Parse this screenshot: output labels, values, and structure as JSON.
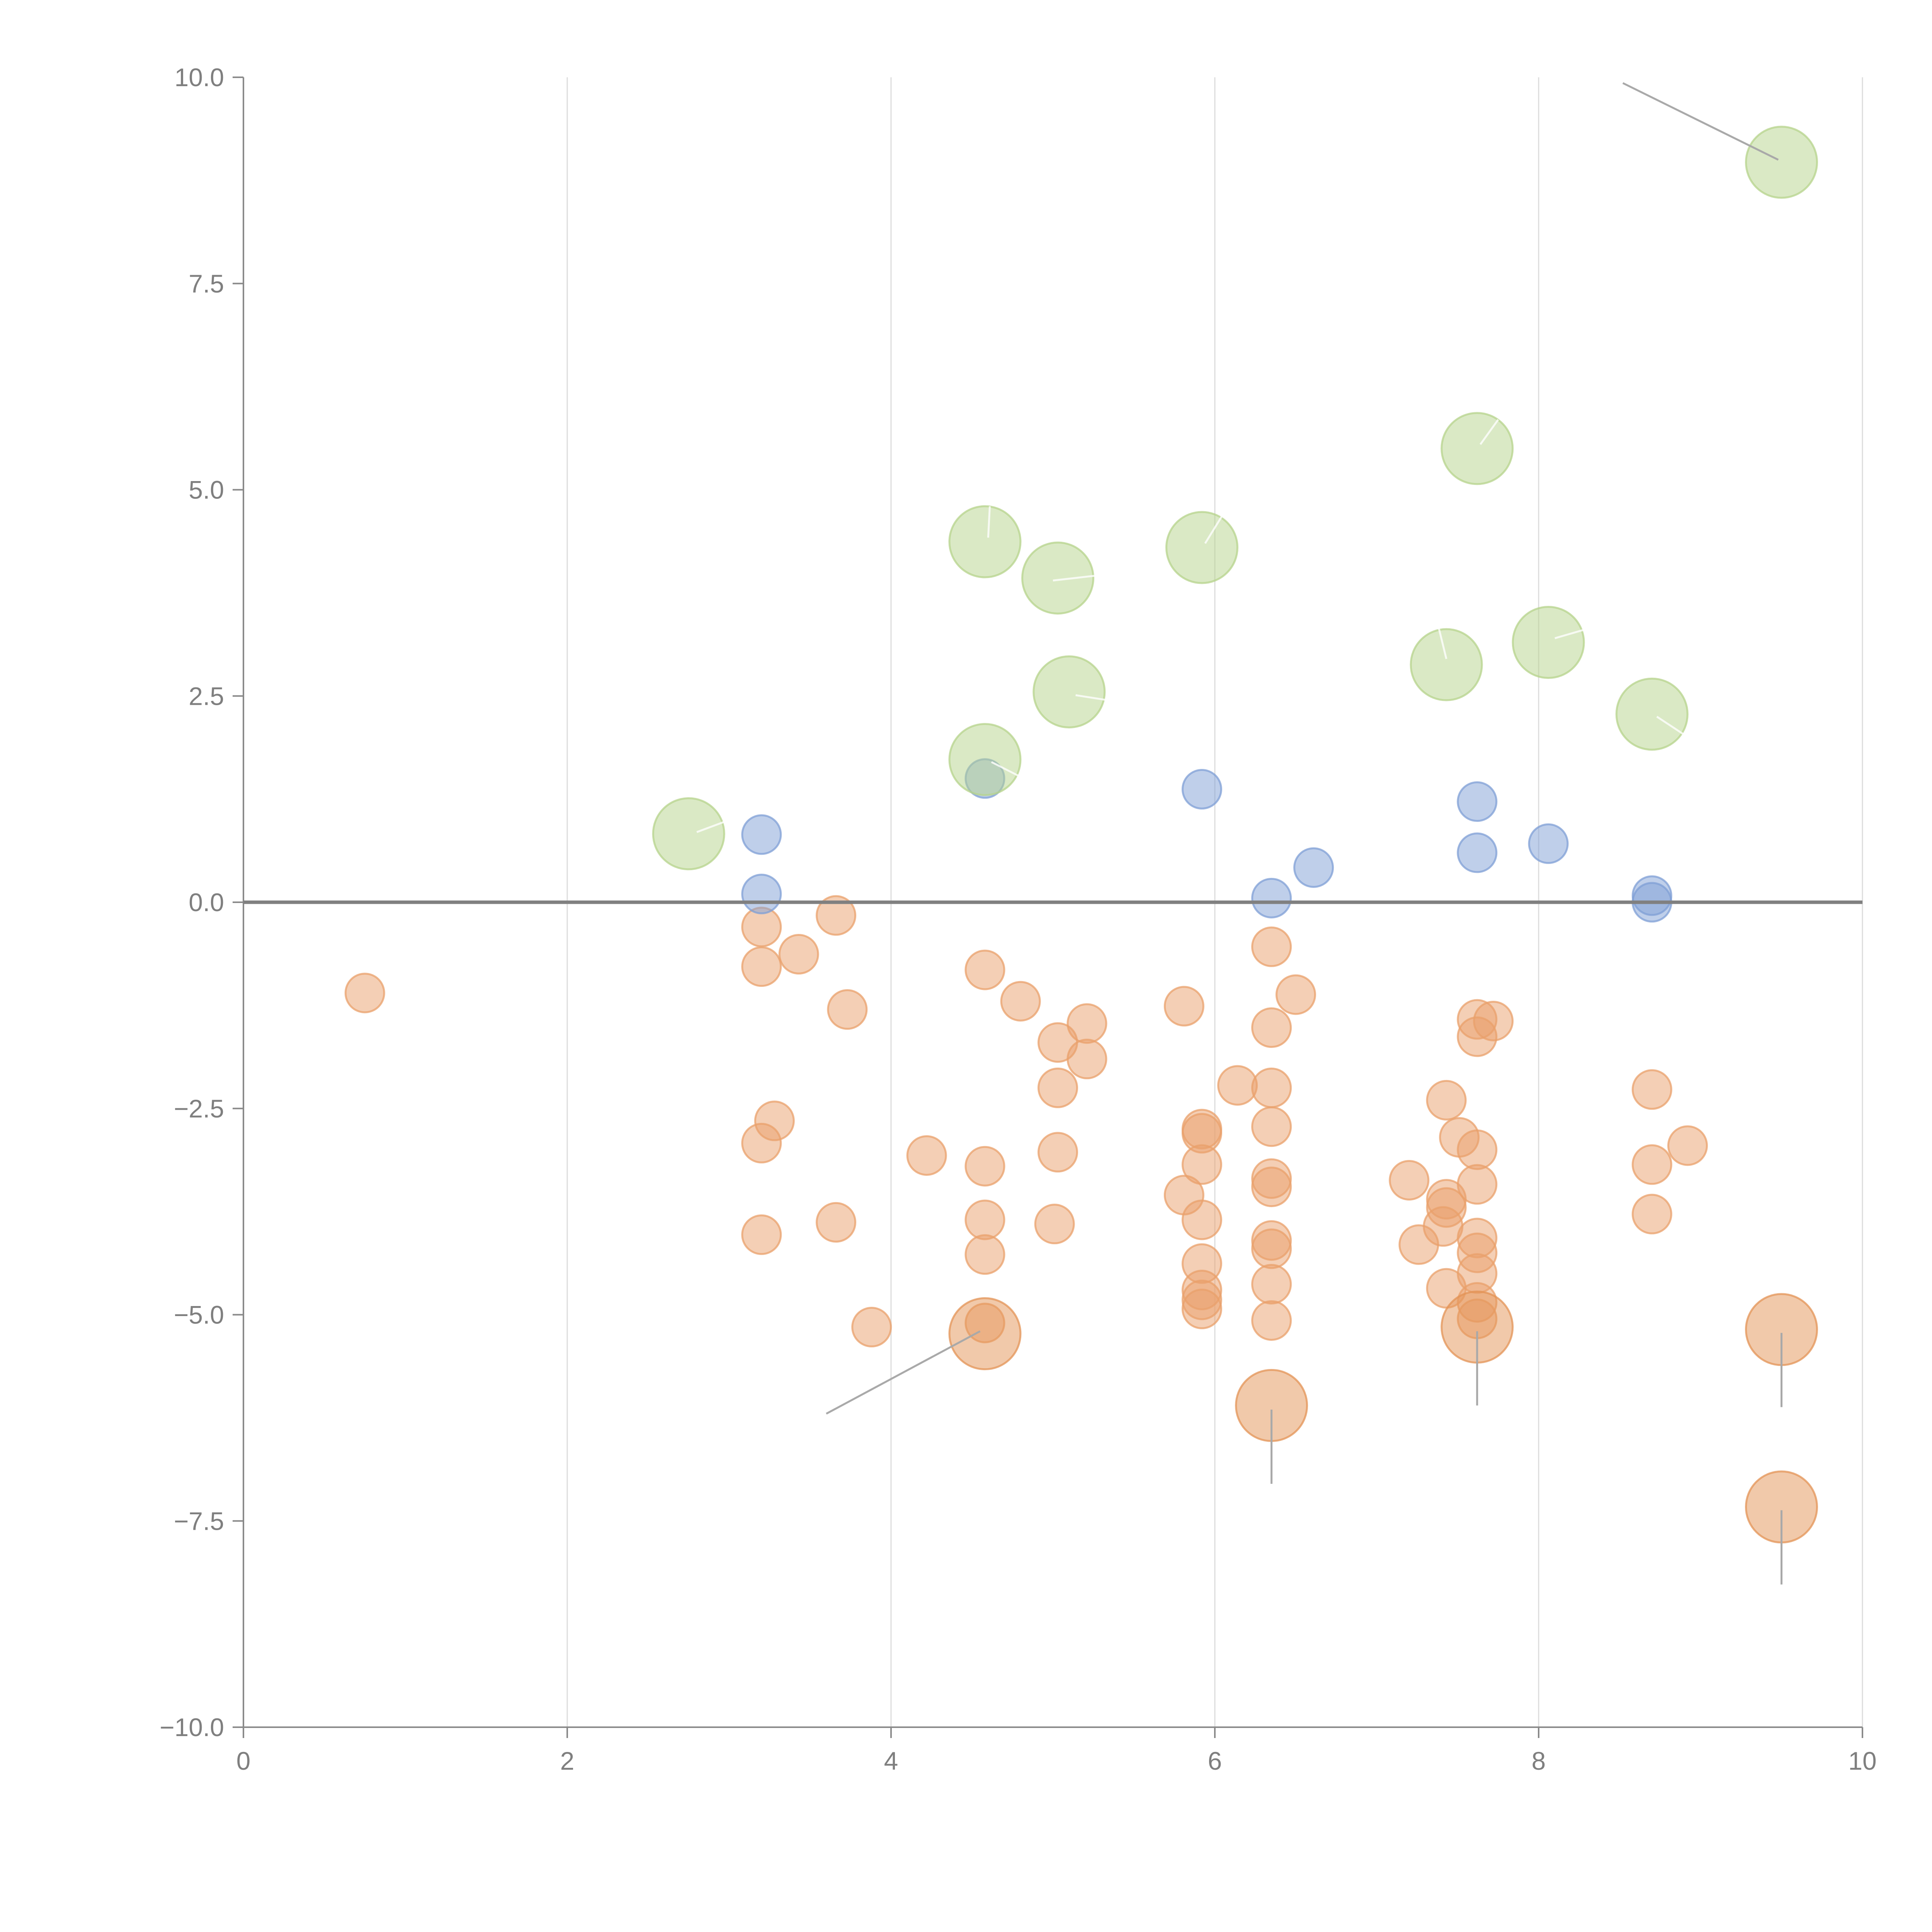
{
  "chart_data": {
    "type": "scatter",
    "title": "",
    "xlabel": "",
    "ylabel": "",
    "xlim": [
      0,
      10
    ],
    "ylim": [
      -10,
      10
    ],
    "x_ticks": [
      0,
      2,
      4,
      6,
      8,
      10
    ],
    "x_tick_labels": [
      "0",
      "2",
      "4",
      "6",
      "8",
      "10"
    ],
    "y_ticks": [
      10,
      7.5,
      5,
      2.5,
      0,
      -2.5,
      -5,
      -7.5,
      -10
    ],
    "y_tick_labels": [
      "10.0",
      "7.5",
      "5.0",
      "2.5",
      "0.0",
      "−2.5",
      "−5.0",
      "−7.5",
      "−10.0"
    ],
    "grid": "vertical lines at x ticks",
    "zero_line": 0,
    "colors": {
      "small_negative": "#e9a06b",
      "small_positive": "#7f9fd6",
      "large_positive": "#b5d38b",
      "large_negative": "#e39356",
      "leader": "#a9a9a9"
    },
    "series": [
      {
        "name": "small-negative",
        "marker": "small",
        "color_key": "small_negative",
        "points": [
          [
            0.75,
            -1.1
          ],
          [
            3.2,
            -0.3
          ],
          [
            3.2,
            -0.78
          ],
          [
            3.43,
            -0.63
          ],
          [
            3.66,
            -0.16
          ],
          [
            3.73,
            -1.3
          ],
          [
            3.28,
            -2.65
          ],
          [
            3.2,
            -2.92
          ],
          [
            3.2,
            -4.03
          ],
          [
            3.66,
            -3.88
          ],
          [
            3.88,
            -5.15
          ],
          [
            4.22,
            -3.07
          ],
          [
            4.58,
            -0.82
          ],
          [
            4.8,
            -1.2
          ],
          [
            5.03,
            -1.7
          ],
          [
            5.21,
            -1.47
          ],
          [
            5.21,
            -1.9
          ],
          [
            5.03,
            -2.25
          ],
          [
            5.03,
            -3.03
          ],
          [
            5.01,
            -3.9
          ],
          [
            4.58,
            -3.2
          ],
          [
            4.58,
            -3.85
          ],
          [
            4.58,
            -4.27
          ],
          [
            4.58,
            -5.1
          ],
          [
            5.81,
            -1.26
          ],
          [
            6.14,
            -2.22
          ],
          [
            5.92,
            -2.75
          ],
          [
            5.92,
            -2.8
          ],
          [
            5.92,
            -3.18
          ],
          [
            5.81,
            -3.55
          ],
          [
            5.92,
            -3.85
          ],
          [
            5.92,
            -4.38
          ],
          [
            5.92,
            -4.7
          ],
          [
            5.92,
            -4.82
          ],
          [
            5.92,
            -4.93
          ],
          [
            6.35,
            -0.54
          ],
          [
            6.5,
            -1.12
          ],
          [
            6.35,
            -1.52
          ],
          [
            6.35,
            -2.25
          ],
          [
            6.35,
            -2.72
          ],
          [
            6.35,
            -3.35
          ],
          [
            6.35,
            -3.45
          ],
          [
            6.35,
            -4.1
          ],
          [
            6.35,
            -4.2
          ],
          [
            6.35,
            -4.63
          ],
          [
            6.35,
            -5.07
          ],
          [
            7.2,
            -3.37
          ],
          [
            7.43,
            -2.4
          ],
          [
            7.51,
            -2.85
          ],
          [
            7.43,
            -3.6
          ],
          [
            7.43,
            -3.7
          ],
          [
            7.41,
            -3.93
          ],
          [
            7.26,
            -4.15
          ],
          [
            7.43,
            -4.68
          ],
          [
            7.62,
            -1.42
          ],
          [
            7.72,
            -1.44
          ],
          [
            7.62,
            -1.63
          ],
          [
            7.62,
            -3.0
          ],
          [
            7.62,
            -3.42
          ],
          [
            7.62,
            -4.07
          ],
          [
            7.62,
            -4.25
          ],
          [
            7.62,
            -4.5
          ],
          [
            7.62,
            -4.85
          ],
          [
            7.62,
            -5.05
          ],
          [
            8.7,
            -2.27
          ],
          [
            8.92,
            -2.95
          ],
          [
            8.7,
            -3.18
          ],
          [
            8.7,
            -3.78
          ]
        ]
      },
      {
        "name": "small-positive",
        "marker": "small",
        "color_key": "small_positive",
        "points": [
          [
            3.2,
            0.82
          ],
          [
            3.2,
            0.1
          ],
          [
            4.58,
            1.5
          ],
          [
            5.92,
            1.37
          ],
          [
            6.35,
            0.05
          ],
          [
            6.61,
            0.42
          ],
          [
            7.62,
            1.22
          ],
          [
            7.62,
            0.6
          ],
          [
            8.06,
            0.71
          ],
          [
            8.7,
            0.08
          ],
          [
            8.7,
            0.0
          ]
        ]
      },
      {
        "name": "large-positive",
        "marker": "large",
        "color_key": "large_positive",
        "points": [
          [
            2.75,
            0.83
          ],
          [
            4.58,
            1.73
          ],
          [
            4.58,
            4.37
          ],
          [
            5.03,
            3.93
          ],
          [
            5.1,
            2.55
          ],
          [
            5.92,
            4.3
          ],
          [
            7.43,
            2.88
          ],
          [
            7.62,
            5.5
          ],
          [
            8.06,
            3.15
          ],
          [
            8.7,
            2.28
          ],
          [
            9.5,
            8.97
          ]
        ]
      },
      {
        "name": "large-negative",
        "marker": "large",
        "color_key": "large_negative",
        "points": [
          [
            4.58,
            -5.23
          ],
          [
            6.35,
            -6.1
          ],
          [
            7.62,
            -5.15
          ],
          [
            9.5,
            -5.18
          ],
          [
            9.5,
            -7.33
          ]
        ]
      }
    ],
    "leader_lines": [
      {
        "from": [
          9.48,
          9.0
        ],
        "to": [
          8.52,
          9.93
        ],
        "style": "gray"
      },
      {
        "from": [
          4.55,
          -5.2
        ],
        "to": [
          3.6,
          -6.2
        ],
        "style": "gray"
      },
      {
        "from": [
          6.35,
          -6.15
        ],
        "to": [
          6.35,
          -7.05
        ],
        "style": "gray"
      },
      {
        "from": [
          7.62,
          -5.2
        ],
        "to": [
          7.62,
          -6.1
        ],
        "style": "gray"
      },
      {
        "from": [
          9.5,
          -5.22
        ],
        "to": [
          9.5,
          -6.12
        ],
        "style": "gray"
      },
      {
        "from": [
          9.5,
          -7.37
        ],
        "to": [
          9.5,
          -8.27
        ],
        "style": "gray"
      },
      {
        "from": [
          4.6,
          4.42
        ],
        "to": [
          4.61,
          4.8
        ],
        "style": "white"
      },
      {
        "from": [
          5.0,
          3.9
        ],
        "to": [
          5.36,
          3.98
        ],
        "style": "white"
      },
      {
        "from": [
          5.14,
          2.51
        ],
        "to": [
          5.5,
          2.4
        ],
        "style": "white"
      },
      {
        "from": [
          5.94,
          4.35
        ],
        "to": [
          6.05,
          4.7
        ],
        "style": "white"
      },
      {
        "from": [
          7.43,
          2.95
        ],
        "to": [
          7.38,
          3.35
        ],
        "style": "white"
      },
      {
        "from": [
          7.64,
          5.55
        ],
        "to": [
          7.75,
          5.85
        ],
        "style": "white"
      },
      {
        "from": [
          8.1,
          3.2
        ],
        "to": [
          8.45,
          3.4
        ],
        "style": "white"
      },
      {
        "from": [
          8.73,
          2.25
        ],
        "to": [
          9.0,
          1.9
        ],
        "style": "white"
      },
      {
        "from": [
          2.8,
          0.85
        ],
        "to": [
          3.1,
          1.07
        ],
        "style": "white"
      },
      {
        "from": [
          4.62,
          1.7
        ],
        "to": [
          4.87,
          1.45
        ],
        "style": "white"
      }
    ]
  }
}
